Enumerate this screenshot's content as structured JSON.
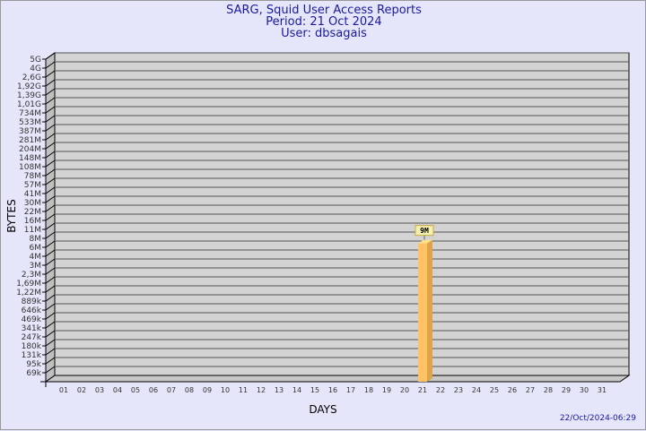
{
  "chart_data": {
    "type": "bar",
    "title": "SARG, Squid User Access Reports",
    "subtitle": [
      "Period: 21 Oct 2024",
      "User: dbsagais"
    ],
    "xlabel": "DAYS",
    "ylabel": "BYTES",
    "categories": [
      "01",
      "02",
      "03",
      "04",
      "05",
      "06",
      "07",
      "08",
      "09",
      "10",
      "11",
      "12",
      "13",
      "14",
      "15",
      "16",
      "17",
      "18",
      "19",
      "20",
      "21",
      "22",
      "23",
      "24",
      "25",
      "26",
      "27",
      "28",
      "29",
      "30",
      "31"
    ],
    "y_tick_labels": [
      "69k",
      "95k",
      "131k",
      "180k",
      "247k",
      "341k",
      "469k",
      "646k",
      "889k",
      "1,22M",
      "1,69M",
      "2,3M",
      "3M",
      "4M",
      "6M",
      "8M",
      "11M",
      "16M",
      "22M",
      "30M",
      "41M",
      "57M",
      "78M",
      "108M",
      "148M",
      "204M",
      "281M",
      "387M",
      "533M",
      "734M",
      "1,01G",
      "1,39G",
      "1,92G",
      "2,6G",
      "4G",
      "5G"
    ],
    "y_scale": "log",
    "grid": true,
    "series": [
      {
        "values": [
          null,
          null,
          null,
          null,
          null,
          null,
          null,
          null,
          null,
          null,
          null,
          null,
          null,
          null,
          null,
          null,
          null,
          null,
          null,
          null,
          9000000,
          null,
          null,
          null,
          null,
          null,
          null,
          null,
          null,
          null,
          null
        ],
        "data_labels": {
          "21": "9M"
        }
      }
    ],
    "colors": {
      "bar": "#ffc266",
      "bar_side": "#e0a448",
      "panel": "#d3d3d3",
      "background": "#e6e6fa",
      "text": "#1a1a9e"
    }
  },
  "footer": "22/Oct/2024-06:29"
}
